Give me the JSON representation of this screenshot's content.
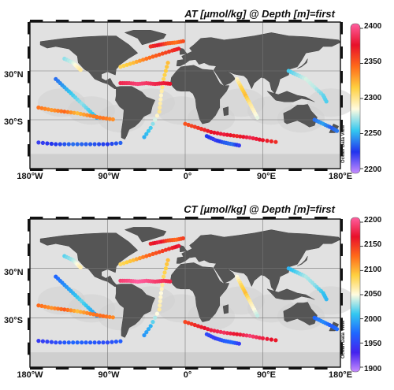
{
  "panels": [
    {
      "title": "AT [µmol/kg] @ Depth [m]=first",
      "colorbar_ticks": [
        "2400",
        "2350",
        "2300",
        "2250",
        "2200"
      ],
      "colorbar_range": [
        2200,
        2400
      ],
      "colors": [
        "#c78cff",
        "#2233ee",
        "#33c8f0",
        "#fffbe0",
        "#ffd040",
        "#ff6a1a",
        "#e8102a",
        "#ff5fa0"
      ]
    },
    {
      "title": "CT [µmol/kg] @ Depth [m]=first",
      "colorbar_ticks": [
        "2200",
        "2150",
        "2100",
        "2050",
        "2000",
        "1950",
        "1900"
      ],
      "colorbar_range": [
        1900,
        2200
      ],
      "colors": [
        "#c78cff",
        "#4422ee",
        "#1f66ff",
        "#33c8f0",
        "#fffbe0",
        "#ffd040",
        "#ff6a1a",
        "#e8102a",
        "#ff5fa0"
      ]
    }
  ],
  "lat_labels": [
    "30°N",
    "30°S"
  ],
  "lon_labels": [
    "180°W",
    "90°W",
    "0°",
    "90°E",
    "180°E"
  ],
  "credit": "Ocean Data View"
}
